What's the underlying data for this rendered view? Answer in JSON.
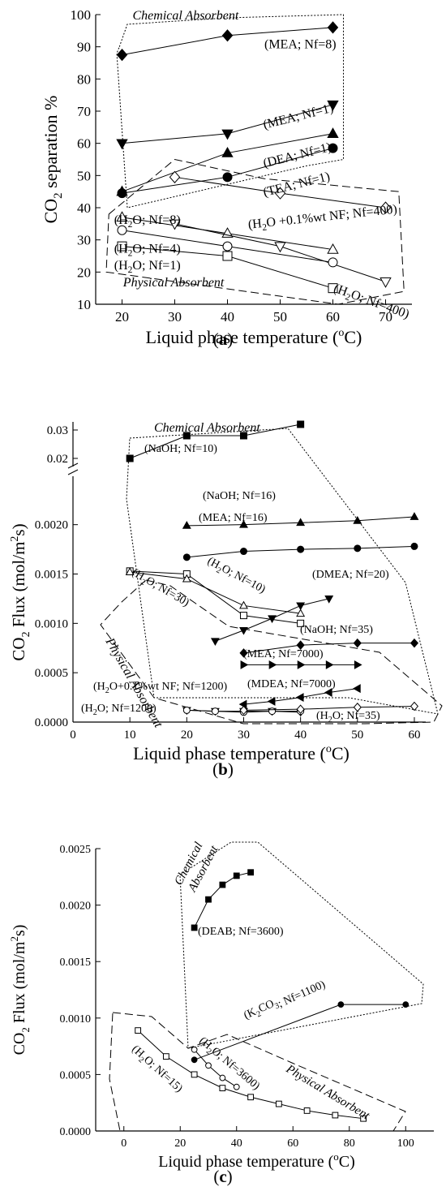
{
  "chart_data": [
    {
      "type": "line",
      "panel_label": "a",
      "xlabel": "Liquid phase temperature (",
      "xlabel_unit": "C)",
      "ylabel": "CO",
      "ylabel_sub": "2",
      "ylabel_rest": " separation %",
      "xlim": [
        15,
        75
      ],
      "ylim": [
        10,
        100
      ],
      "xticks": [
        20,
        30,
        40,
        50,
        60,
        70
      ],
      "yticks": [
        10,
        20,
        30,
        40,
        50,
        60,
        70,
        80,
        90,
        100
      ],
      "grid": false,
      "region_labels": [
        "Chemical Absorbent",
        "Physical Absorbent"
      ],
      "series": [
        {
          "name": "(MEA; Nf=8)",
          "marker": "diamond-filled",
          "x": [
            20,
            40,
            60
          ],
          "y": [
            87.5,
            93.5,
            96
          ]
        },
        {
          "name": "(MEA; Nf=1)",
          "marker": "triangle-down-filled",
          "x": [
            20,
            40,
            60
          ],
          "y": [
            60,
            63,
            72
          ]
        },
        {
          "name": "(DEA; Nf=1)",
          "marker": "triangle-up-filled",
          "x": [
            20,
            40,
            60
          ],
          "y": [
            45,
            57,
            63
          ]
        },
        {
          "name": "(TEA; Nf=1)",
          "marker": "circle-filled",
          "x": [
            20,
            40,
            60
          ],
          "y": [
            44.5,
            49.5,
            58.5
          ]
        },
        {
          "name": "(H2O +0.1%wt NF; Nf=400)",
          "marker": "diamond-open",
          "x": [
            30,
            50,
            70
          ],
          "y": [
            49.5,
            44.5,
            40
          ]
        },
        {
          "name": "(H2O; Nf=8)",
          "marker": "triangle-up-open",
          "x": [
            20,
            40,
            60
          ],
          "y": [
            37,
            32,
            27
          ]
        },
        {
          "name": "(H2O; Nf=400)",
          "marker": "triangle-down-open",
          "x": [
            30,
            50,
            70
          ],
          "y": [
            35,
            28,
            17
          ]
        },
        {
          "name": "(H2O; Nf=4)",
          "marker": "circle-open",
          "x": [
            20,
            40,
            60
          ],
          "y": [
            33,
            28,
            23
          ]
        },
        {
          "name": "(H2O; Nf=1)",
          "marker": "square-open",
          "x": [
            20,
            40,
            60
          ],
          "y": [
            28,
            25,
            15
          ]
        }
      ]
    },
    {
      "type": "line",
      "panel_label": "b",
      "xlabel": "Liquid phase temperature (",
      "xlabel_unit": "C)",
      "ylabel": "CO",
      "ylabel_sub": "2",
      "ylabel_rest": " Flux (mol/m",
      "ylabel_sup": "2",
      "ylabel_end": "s)",
      "xlim": [
        0,
        62
      ],
      "ylim": [
        0,
        0.0024
      ],
      "ylim_upper_break": [
        0.02,
        0.03
      ],
      "xticks": [
        0,
        10,
        20,
        30,
        40,
        50,
        60
      ],
      "yticks": [
        "0.0000",
        "0.0005",
        "0.0010",
        "0.0015",
        "0.0020"
      ],
      "yticks_upper": [
        "0.02",
        "0.03"
      ],
      "grid": false,
      "region_labels": [
        "Chemical Absorbent",
        "Physical Absorbent"
      ],
      "series": [
        {
          "name": "(NaOH; Nf=10)",
          "marker": "square-filled",
          "x": [
            10,
            20,
            30,
            40
          ],
          "y": [
            0.02,
            0.028,
            0.028,
            0.032
          ]
        },
        {
          "name": "(NaOH; Nf=16)",
          "marker": "triangle-up-filled",
          "x": [
            20,
            30,
            40,
            50,
            60
          ],
          "y": [
            0.00199,
            0.002,
            0.00202,
            0.00204,
            0.00208
          ]
        },
        {
          "name": "(MEA; Nf=16)",
          "marker": "circle-filled",
          "x": [
            20,
            30,
            40,
            50,
            60
          ],
          "y": [
            0.00167,
            0.00173,
            0.00175,
            0.00176,
            0.00178
          ]
        },
        {
          "name": "(DMEA; Nf=20)",
          "marker": "triangle-down-filled",
          "x": [
            25,
            30,
            35,
            40,
            45
          ],
          "y": [
            0.00082,
            0.00093,
            0.00105,
            0.00118,
            0.00125
          ]
        },
        {
          "name": "(NaOH; Nf=35)",
          "marker": "diamond-filled",
          "x": [
            30,
            40,
            50,
            60
          ],
          "y": [
            0.0007,
            0.00078,
            0.0008,
            0.0008
          ]
        },
        {
          "name": "(MEA; Nf=7000)",
          "marker": "triangle-right-filled",
          "x": [
            30,
            35,
            40,
            45,
            50
          ],
          "y": [
            0.00058,
            0.00058,
            0.00058,
            0.00058,
            0.00058
          ]
        },
        {
          "name": "(MDEA; Nf=7000)",
          "marker": "triangle-left-filled",
          "x": [
            30,
            35,
            40,
            45,
            50
          ],
          "y": [
            0.00018,
            0.00021,
            0.00025,
            0.0003,
            0.00034
          ]
        },
        {
          "name": "(H2O; Nf=30)",
          "marker": "square-open",
          "x": [
            10,
            20,
            30,
            40
          ],
          "y": [
            0.00153,
            0.0015,
            0.00108,
            0.001
          ]
        },
        {
          "name": "(H2O; Nf=10)",
          "marker": "triangle-up-open",
          "x": [
            10,
            20,
            30,
            40
          ],
          "y": [
            0.00152,
            0.00145,
            0.00118,
            0.0011
          ]
        },
        {
          "name": "(H2O+0.1%wt NF; Nf=1200)",
          "marker": "triangle-down-open",
          "x": [
            20,
            25,
            30,
            35,
            40
          ],
          "y": [
            0.00012,
            0.00011,
            0.00011,
            0.00011,
            0.0001
          ]
        },
        {
          "name": "(H2O; Nf=1200)",
          "marker": "circle-open",
          "x": [
            20,
            25,
            30,
            35,
            40
          ],
          "y": [
            0.00012,
            0.00011,
            0.0001,
            0.00011,
            0.00011
          ]
        },
        {
          "name": "(H2O; Nf=35)",
          "marker": "diamond-open",
          "x": [
            30,
            40,
            50,
            60
          ],
          "y": [
            0.00012,
            0.00013,
            0.00015,
            0.00016
          ]
        }
      ]
    },
    {
      "type": "line",
      "panel_label": "c",
      "xlabel": "Liquid phase temperature (",
      "xlabel_unit": "C)",
      "ylabel": "CO",
      "ylabel_sub": "2",
      "ylabel_rest": " Flux (mol/m",
      "ylabel_sup": "2",
      "ylabel_end": "s)",
      "xlim": [
        -10,
        110
      ],
      "ylim": [
        0,
        0.0025
      ],
      "xticks": [
        0,
        20,
        40,
        60,
        80,
        100
      ],
      "yticks": [
        "0.0000",
        "0.0005",
        "0.0010",
        "0.0015",
        "0.0020",
        "0.0025"
      ],
      "grid": false,
      "region_labels": [
        "Chemical",
        "Absorbent",
        "Physical Absorbent"
      ],
      "series": [
        {
          "name": "(DEAB; Nf=3600)",
          "marker": "square-filled",
          "x": [
            25,
            30,
            35,
            40,
            45
          ],
          "y": [
            0.0018,
            0.00205,
            0.00218,
            0.00226,
            0.00229
          ]
        },
        {
          "name": "(K2CO3; Nf=1100)",
          "marker": "circle-filled",
          "x": [
            25,
            77,
            100
          ],
          "y": [
            0.00063,
            0.00112,
            0.00112
          ]
        },
        {
          "name": "(H2O; Nf=3600)",
          "marker": "circle-open",
          "x": [
            25,
            30,
            35,
            40
          ],
          "y": [
            0.00072,
            0.00058,
            0.00047,
            0.00039
          ]
        },
        {
          "name": "(H2O; Nf=15)",
          "marker": "square-open",
          "x": [
            5,
            15,
            25,
            35,
            45,
            55,
            65,
            75,
            85
          ],
          "y": [
            0.00089,
            0.00066,
            0.0005,
            0.00038,
            0.0003,
            0.00024,
            0.00018,
            0.00014,
            0.00011
          ]
        }
      ]
    }
  ]
}
